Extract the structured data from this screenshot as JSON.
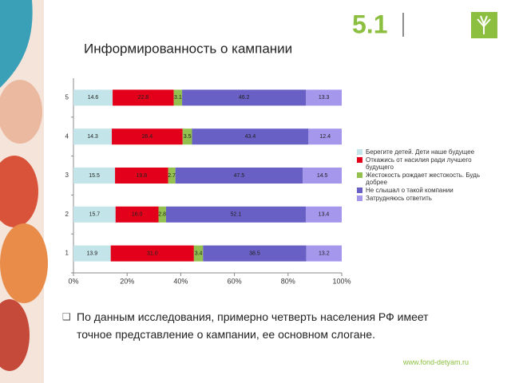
{
  "slide_number": "5.1",
  "chart_data": {
    "type": "stacked-barh",
    "title": "Информированность о кампании",
    "categories": [
      "1",
      "2",
      "3",
      "4",
      "5"
    ],
    "series": [
      {
        "name": "Берегите детей. Дети наше будущее",
        "color": "#c3e4e8",
        "values": [
          13.9,
          15.7,
          15.5,
          14.3,
          14.6
        ]
      },
      {
        "name": "Откажись от насилия ради лучшего будущего",
        "color": "#e2001a",
        "values": [
          31.0,
          16.0,
          19.8,
          26.4,
          22.8
        ],
        "value_labels": [
          "31.0",
          "16.0",
          "19.8",
          "26.4",
          "22.8"
        ]
      },
      {
        "name": "Жестокость рождает жестокость. Будь добрее",
        "color": "#93c04e",
        "values": [
          3.4,
          2.8,
          2.7,
          3.5,
          3.1
        ]
      },
      {
        "name": "Не слышал о такой компании",
        "color": "#6860c4",
        "values": [
          38.5,
          52.1,
          47.5,
          43.4,
          46.2
        ]
      },
      {
        "name": "Затрудняюсь ответить",
        "color": "#a497ec",
        "values": [
          13.2,
          13.4,
          14.5,
          12.4,
          13.3
        ]
      }
    ],
    "xlim": [
      0,
      100
    ],
    "xticks": [
      {
        "value": 0,
        "label": "0%"
      },
      {
        "value": 20,
        "label": "20%"
      },
      {
        "value": 40,
        "label": "40%"
      },
      {
        "value": 60,
        "label": "60%"
      },
      {
        "value": 80,
        "label": "80%"
      },
      {
        "value": 100,
        "label": "100%"
      }
    ]
  },
  "bullet": "По данным исследования, примерно четверть населения РФ имеет точное представление о кампании, ее основном слогане.",
  "footer": "www.fond-detyam.ru"
}
